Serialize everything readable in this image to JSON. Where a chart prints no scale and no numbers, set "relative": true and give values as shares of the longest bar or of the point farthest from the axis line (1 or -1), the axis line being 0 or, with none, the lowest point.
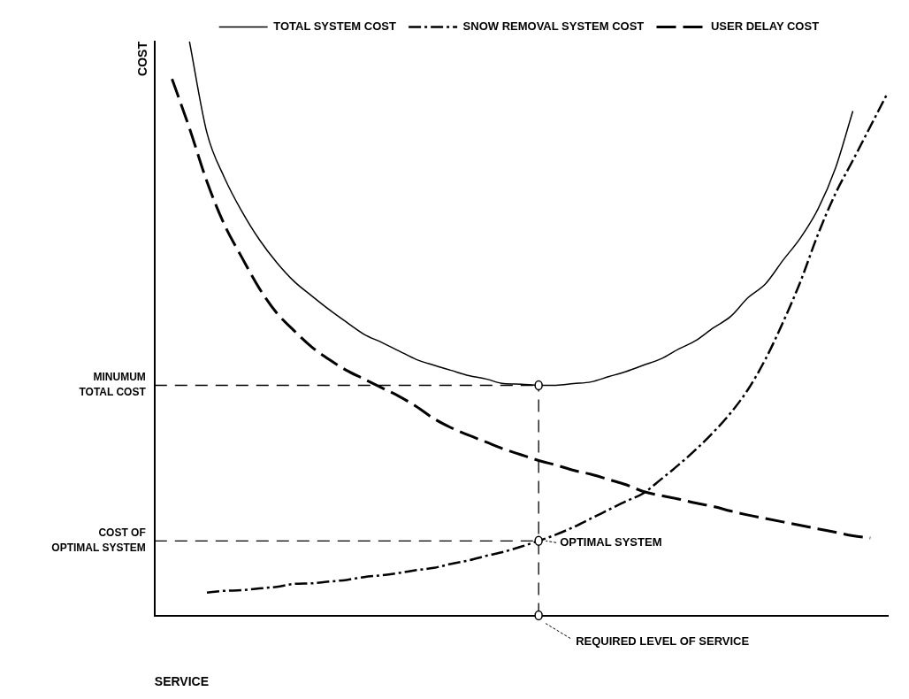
{
  "chart_data": {
    "type": "line",
    "relative": true,
    "xlabel": "SERVICE",
    "ylabel": "COST",
    "legend": "top",
    "categories": [
      null,
      null,
      null,
      null,
      null,
      null,
      null,
      null,
      null,
      null,
      null,
      null,
      null,
      null,
      null,
      null,
      null,
      null,
      null,
      null,
      null,
      null,
      null,
      null,
      null,
      null,
      null,
      null,
      null,
      null,
      null,
      null,
      null,
      null,
      null,
      null,
      null,
      null,
      null,
      null,
      null,
      null,
      null
    ],
    "series": [
      {
        "name": "TOTAL SYSTEM COST",
        "color": "#000000",
        "line_style": "solid",
        "values": [
          null,
          null,
          1,
          0.841,
          0.763,
          0.704,
          0.655,
          0.615,
          0.582,
          0.557,
          0.533,
          0.511,
          0.49,
          0.476,
          0.461,
          0.446,
          0.436,
          0.427,
          0.418,
          0.412,
          0.404,
          0.403,
          0.401,
          0.401,
          0.404,
          0.407,
          0.416,
          0.425,
          0.436,
          0.447,
          0.464,
          0.479,
          0.501,
          0.521,
          0.554,
          0.578,
          0.619,
          0.658,
          0.708,
          0.779,
          0.879,
          null,
          null
        ]
      },
      {
        "name": "SNOW REMOVAL SYSTEM COST",
        "color": "#000000",
        "line_style": "dashdot",
        "values": [
          null,
          null,
          null,
          0.04,
          0.043,
          0.044,
          0.047,
          0.05,
          0.055,
          0.056,
          0.059,
          0.062,
          0.067,
          0.07,
          0.074,
          0.079,
          0.083,
          0.09,
          0.096,
          0.104,
          0.111,
          0.12,
          0.13,
          0.141,
          0.154,
          0.169,
          0.184,
          0.199,
          0.213,
          0.237,
          0.262,
          0.289,
          0.319,
          0.353,
          0.394,
          0.447,
          0.511,
          0.582,
          0.664,
          0.735,
          0.793,
          0.852,
          0.911
        ]
      },
      {
        "name": "USER DELAY COST",
        "color": "#000000",
        "line_style": "dashed",
        "values": [
          null,
          0.935,
          0.849,
          0.756,
          0.681,
          0.624,
          0.57,
          0.527,
          0.496,
          0.468,
          0.446,
          0.427,
          0.412,
          0.397,
          0.382,
          0.364,
          0.343,
          0.327,
          0.314,
          0.302,
          0.29,
          0.28,
          0.27,
          0.262,
          0.253,
          0.246,
          0.237,
          0.228,
          0.216,
          0.209,
          0.203,
          0.196,
          0.19,
          0.182,
          0.175,
          0.169,
          0.163,
          0.157,
          0.151,
          0.145,
          0.139,
          0.135,
          null
        ]
      }
    ],
    "ref_lines": [
      {
        "axis": "y",
        "value": 0.401,
        "label": "MINUMUM TOTAL COST",
        "line_style": "dashed"
      },
      {
        "axis": "y",
        "value": 0.13,
        "label": "COST OF OPTIMAL SYSTEM",
        "line_style": "dashed"
      }
    ],
    "annotations": [
      "OPTIMAL SYSTEM",
      "REQUIRED LEVEL OF SERVICE"
    ]
  }
}
